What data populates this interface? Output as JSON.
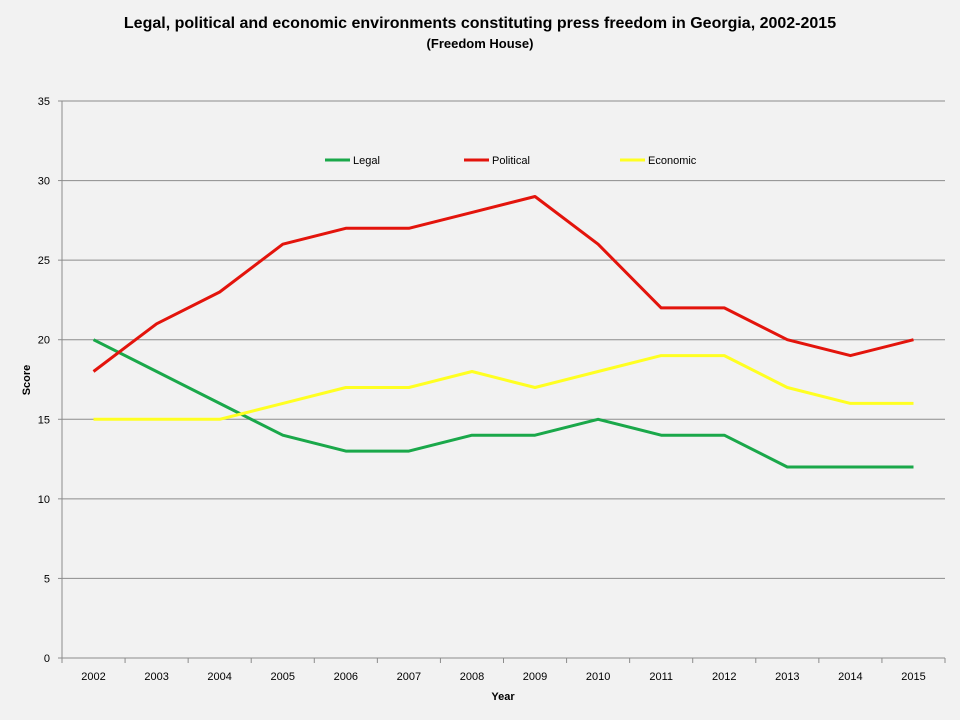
{
  "chart_data": {
    "type": "line",
    "title": "Legal, political and economic environments constituting press freedom in Georgia, 2002-2015",
    "subtitle": "(Freedom House)",
    "xlabel": "Year",
    "ylabel": "Score",
    "categories": [
      "2002",
      "2003",
      "2004",
      "2005",
      "2006",
      "2007",
      "2008",
      "2009",
      "2010",
      "2011",
      "2012",
      "2013",
      "2014",
      "2015"
    ],
    "ylim": [
      0,
      35
    ],
    "yticks": [
      "0",
      "5",
      "10",
      "15",
      "20",
      "25",
      "30",
      "35"
    ],
    "grid": "horizontal",
    "legend_position": "top-center",
    "series": [
      {
        "name": "Legal",
        "color": "#1aa84a",
        "values": [
          20,
          18,
          16,
          14,
          13,
          13,
          14,
          14,
          15,
          14,
          14,
          12,
          12,
          12
        ]
      },
      {
        "name": "Political",
        "color": "#e3140c",
        "values": [
          18,
          21,
          23,
          26,
          27,
          27,
          28,
          29,
          26,
          22,
          22,
          20,
          19,
          20
        ]
      },
      {
        "name": "Economic",
        "color": "#ffff22",
        "values": [
          15,
          15,
          15,
          16,
          17,
          17,
          18,
          17,
          18,
          19,
          19,
          17,
          16,
          16
        ]
      }
    ]
  }
}
